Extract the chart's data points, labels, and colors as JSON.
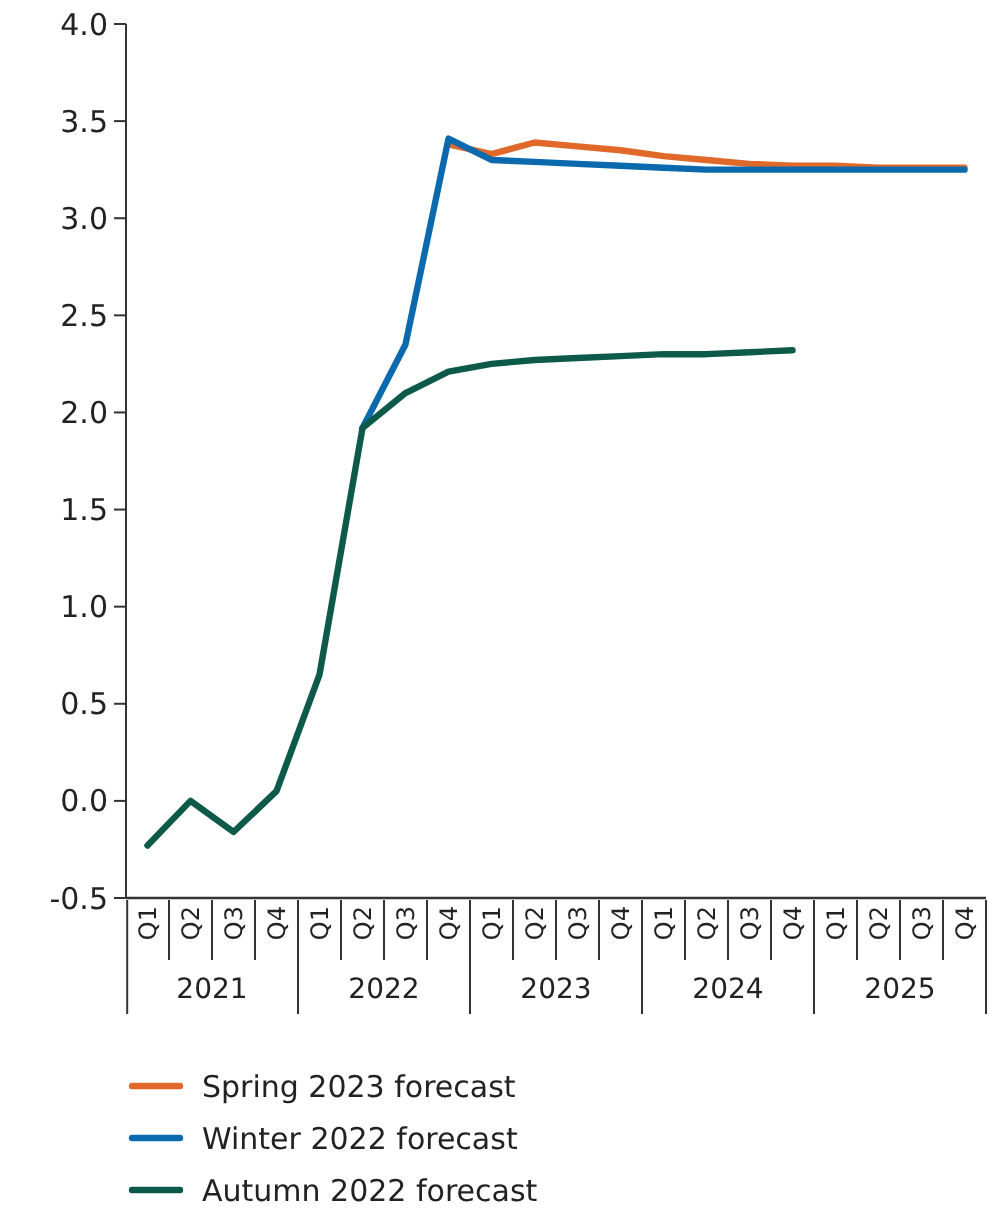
{
  "chart_data": {
    "type": "line",
    "categories": [
      "Q1",
      "Q2",
      "Q3",
      "Q4",
      "Q1",
      "Q2",
      "Q3",
      "Q4",
      "Q1",
      "Q2",
      "Q3",
      "Q4",
      "Q1",
      "Q2",
      "Q3",
      "Q4",
      "Q1",
      "Q2",
      "Q3",
      "Q4"
    ],
    "annotations": [
      "2021",
      "2022",
      "2023",
      "2024",
      "2025"
    ],
    "series": [
      {
        "name": "Spring 2023 forecast",
        "color": "#e0692a",
        "values": [
          null,
          null,
          null,
          null,
          null,
          null,
          null,
          3.38,
          3.33,
          3.39,
          3.37,
          3.35,
          3.32,
          3.3,
          3.28,
          3.27,
          3.27,
          3.26,
          3.26,
          3.26
        ]
      },
      {
        "name": "Winter 2022 forecast",
        "color": "#0a6aad",
        "values": [
          null,
          null,
          null,
          null,
          null,
          1.92,
          2.35,
          3.41,
          3.3,
          3.29,
          3.28,
          3.27,
          3.26,
          3.25,
          3.25,
          3.25,
          3.25,
          3.25,
          3.25,
          3.25
        ]
      },
      {
        "name": "Autumn 2022 forecast",
        "color": "#0e5a4a",
        "values": [
          -0.23,
          0.0,
          -0.16,
          0.05,
          0.65,
          1.92,
          2.1,
          2.21,
          2.25,
          2.27,
          2.28,
          2.29,
          2.3,
          2.3,
          2.31,
          2.32,
          null,
          null,
          null,
          null
        ]
      }
    ],
    "ylim": [
      -0.5,
      4.0
    ],
    "yticks": [
      {
        "value": -0.5,
        "label": "-0.5"
      },
      {
        "value": 0,
        "label": "0.0"
      },
      {
        "value": 0.5,
        "label": "0.5"
      },
      {
        "value": 1,
        "label": "1.0"
      },
      {
        "value": 1.5,
        "label": "1.5"
      },
      {
        "value": 2,
        "label": "2.0"
      },
      {
        "value": 2.5,
        "label": "2.5"
      },
      {
        "value": 3,
        "label": "3.0"
      },
      {
        "value": 3.5,
        "label": "3.5"
      },
      {
        "value": 4,
        "label": "4.0"
      }
    ],
    "grid": false,
    "legend": "bottom",
    "marker": "none",
    "line_style": "solid"
  }
}
